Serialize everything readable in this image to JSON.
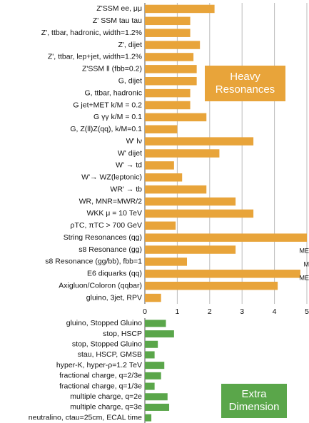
{
  "chart_data": [
    {
      "type": "hbar",
      "color": "#e8a43a",
      "categories": [
        "Z'SSM ee, μμ",
        "Z' SSM tau tau",
        "Z', ttbar, hadronic, width=1.2%",
        "Z', dijet",
        "Z', ttbar, lep+jet, width=1.2%",
        "Z'SSM ll (fbb=0.2)",
        "G, dijet",
        "G, ttbar, hadronic",
        "G jet+MET k/M = 0.2",
        "G γγ k/M = 0.1",
        "G, Z(ll)Z(qq), k/M=0.1",
        "W' lν",
        "W' dijet",
        "W' → td",
        "W'→ WZ(leptonic)",
        "WR' → tb",
        "WR, MNR=MWR/2",
        "WKK μ = 10 TeV",
        "ρTC, πTC > 700 GeV",
        "String Resonances (qg)",
        "s8 Resonance (gg)",
        "s8 Resonance (gg/bb), fbb=1",
        "E6 diquarks (qq)",
        "Axigluon/Coloron (qqbar)",
        "gluino, 3jet, RPV"
      ],
      "values": [
        2.15,
        1.4,
        1.4,
        1.7,
        1.5,
        1.6,
        1.6,
        1.4,
        1.4,
        1.9,
        1.0,
        3.35,
        2.3,
        0.9,
        1.15,
        1.9,
        2.8,
        3.35,
        0.95,
        5.0,
        2.8,
        1.3,
        4.8,
        4.1,
        0.5
      ],
      "xlim": [
        0,
        5
      ],
      "xticks": [
        0,
        1,
        2,
        3,
        4,
        5
      ],
      "grid": true,
      "annotation": "Heavy Resonances",
      "side_labels": [
        "ME",
        "M",
        "ME"
      ]
    },
    {
      "type": "hbar",
      "color": "#5aa64a",
      "categories": [
        "gluino, Stopped Gluino",
        "stop, HSCP",
        "stop, Stopped Gluino",
        "stau, HSCP, GMSB",
        "hyper-K, hyper-ρ=1.2 TeV",
        "fractional charge, q=2/3e",
        "fractional charge, q=1/3e",
        "multiple charge, q=2e",
        "multiple charge, q=3e",
        "neutralino, ctau=25cm, ECAL time"
      ],
      "values": [
        0.65,
        0.9,
        0.4,
        0.3,
        0.6,
        0.5,
        0.3,
        0.7,
        0.75,
        0.2
      ],
      "xlim": [
        0,
        5
      ],
      "grid": true,
      "annotation": "Extra Dimension"
    }
  ]
}
